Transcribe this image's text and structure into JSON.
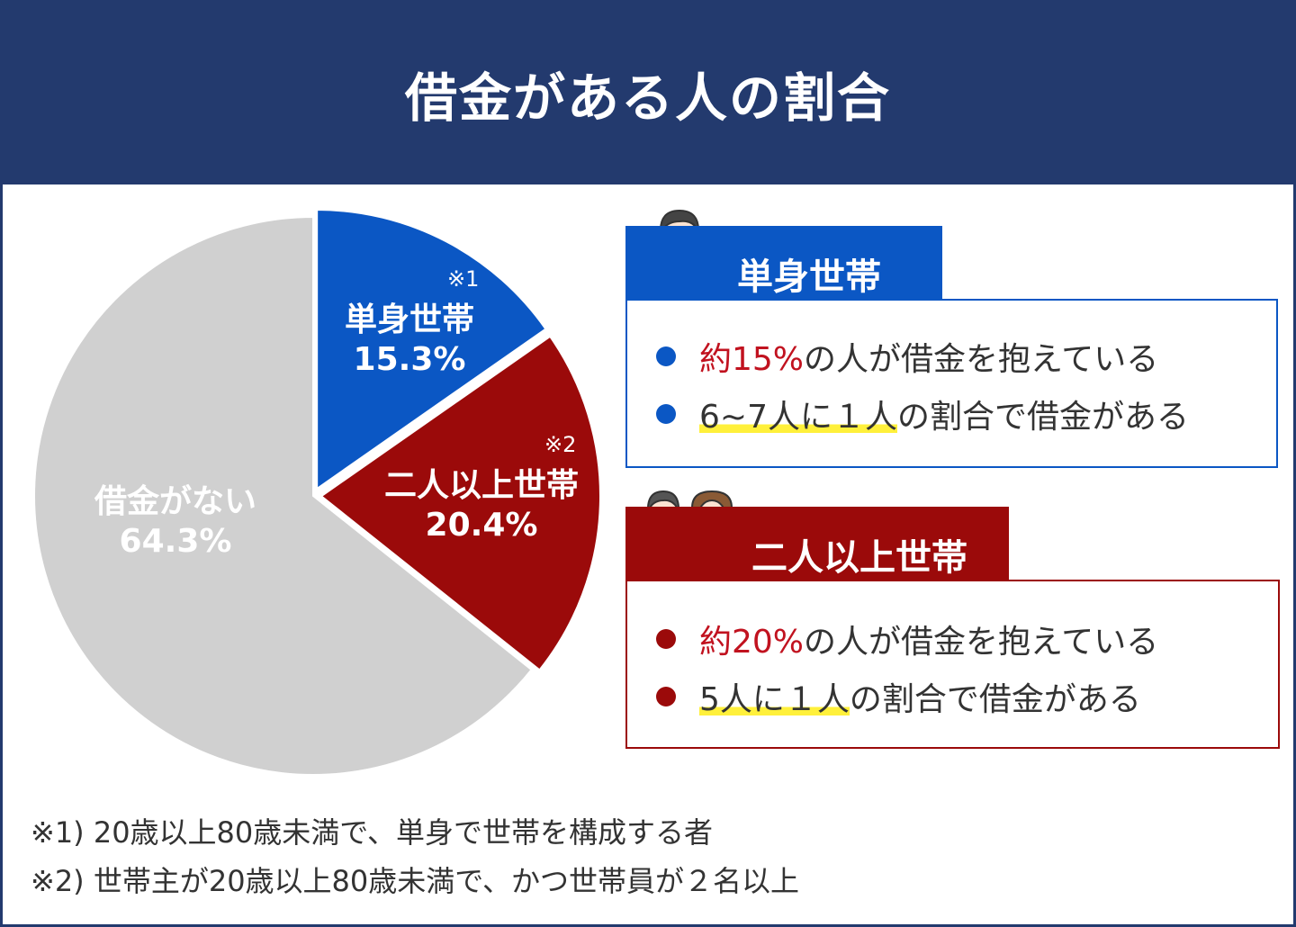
{
  "title": "借金がある人の割合",
  "colors": {
    "header": "#233a6e",
    "single": "#0b57c4",
    "multi": "#9b0a0a",
    "none": "#d0d0d0",
    "highlight": "#fff03b",
    "accent_text": "#c1121f"
  },
  "chart_data": {
    "type": "pie",
    "title": "借金がある人の割合",
    "slices": [
      {
        "label": "単身世帯",
        "value": 15.3,
        "display": "15.3%",
        "note": "※1",
        "color": "#0b57c4"
      },
      {
        "label": "二人以上世帯",
        "value": 20.4,
        "display": "20.4%",
        "note": "※2",
        "color": "#9b0a0a"
      },
      {
        "label": "借金がない",
        "value": 64.3,
        "display": "64.3%",
        "note": "",
        "color": "#d0d0d0"
      }
    ]
  },
  "panels": {
    "single": {
      "tab": "単身世帯",
      "line1": {
        "accent": "約15%",
        "rest": "の人が借金を抱えている"
      },
      "line2": {
        "highlight": "6~7人に１人",
        "rest": "の割合で借金がある"
      }
    },
    "multi": {
      "tab": "二人以上世帯",
      "line1": {
        "accent": "約20%",
        "rest": "の人が借金を抱えている"
      },
      "line2": {
        "highlight": "5人に１人",
        "rest": "の割合で借金がある"
      }
    }
  },
  "footnotes": [
    "※1) 20歳以上80歳未満で、単身で世帯を構成する者",
    "※2) 世帯主が20歳以上80歳未満で、かつ世帯員が２名以上"
  ],
  "icons": {
    "single": "businessman-icon",
    "multi": "family-icon"
  }
}
